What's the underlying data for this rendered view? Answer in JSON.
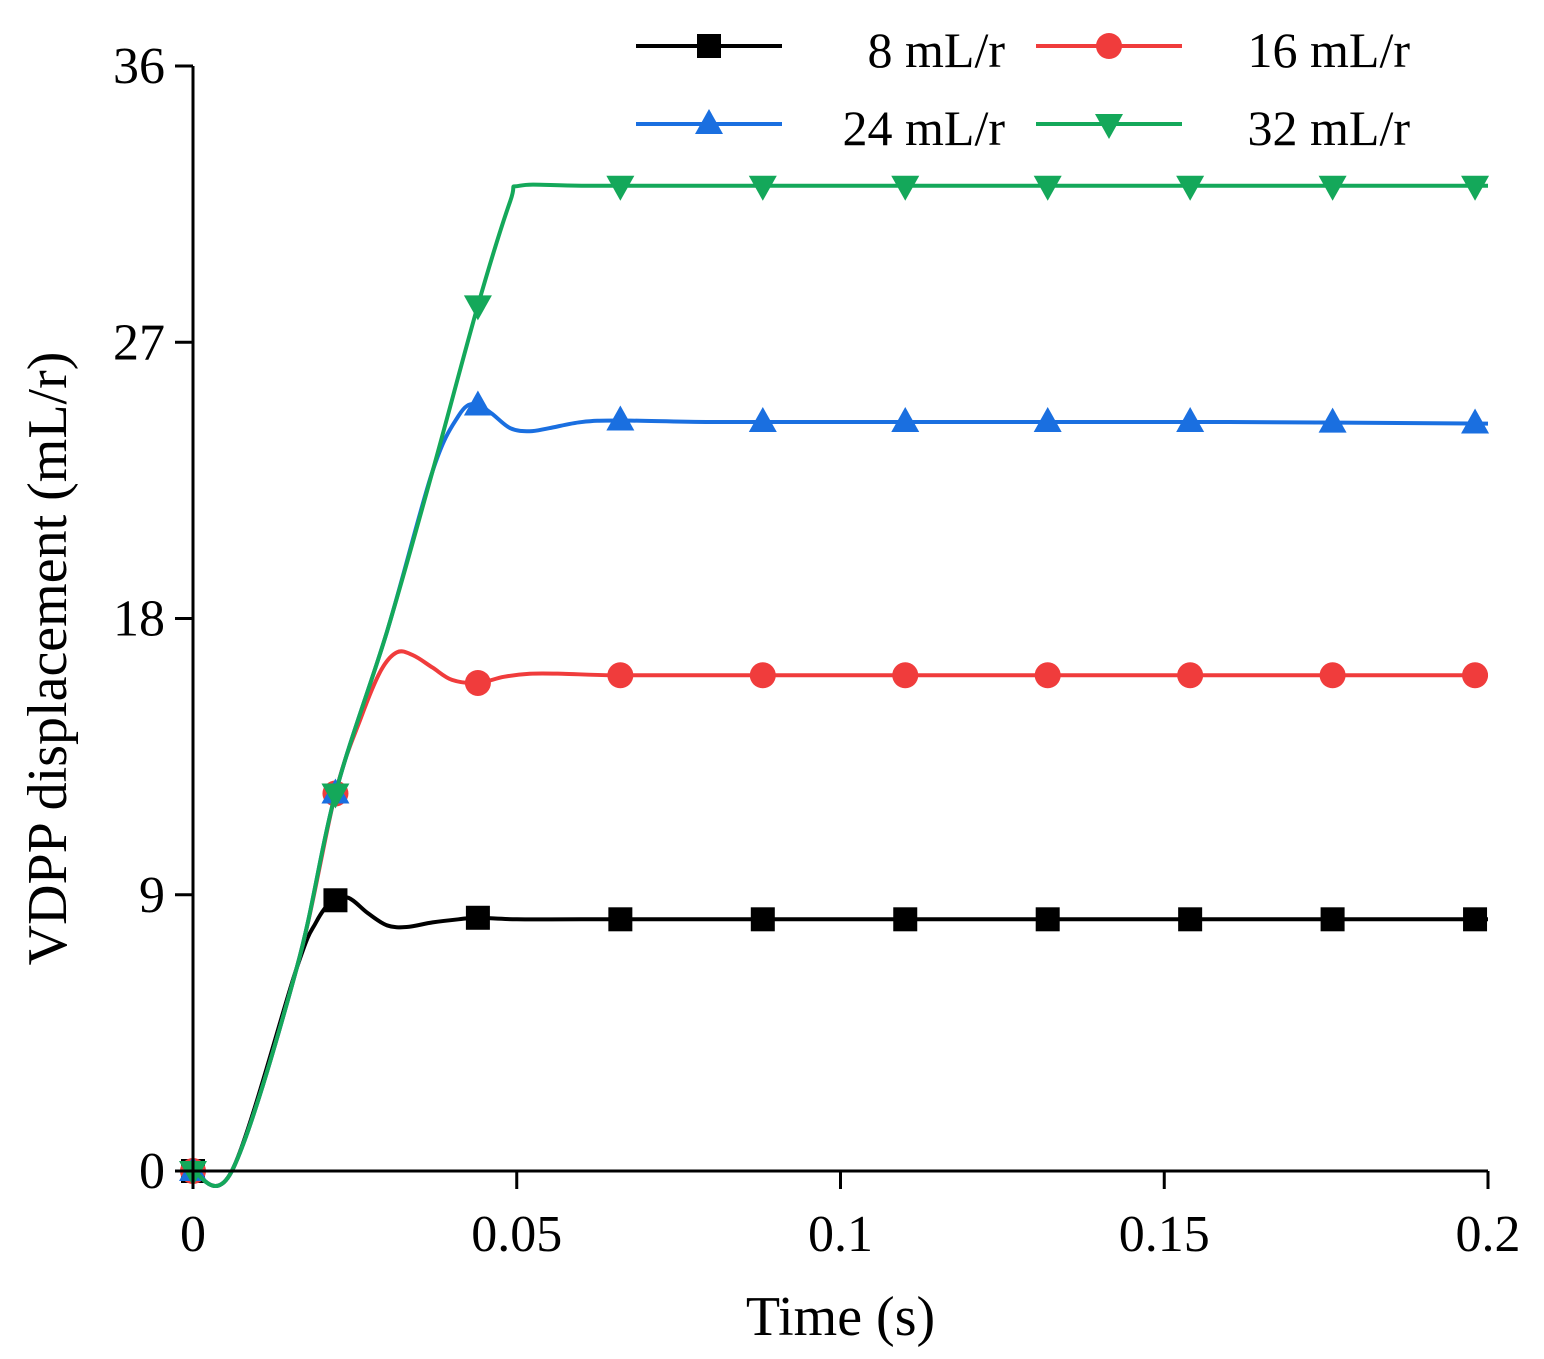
{
  "chart_data": {
    "type": "line",
    "title": "",
    "xlabel": "Time (s)",
    "ylabel": "VDPP displacement (mL/r)",
    "xlim": [
      0,
      0.2
    ],
    "ylim": [
      0,
      36
    ],
    "xticks": [
      0,
      0.05,
      0.1,
      0.15,
      0.2
    ],
    "xtick_labels": [
      "0",
      "0.05",
      "0.1",
      "0.15",
      "0.2"
    ],
    "yticks": [
      0,
      9,
      18,
      27,
      36
    ],
    "ytick_labels": [
      "0",
      "9",
      "18",
      "27",
      "36"
    ],
    "grid": false,
    "legend_position": "top-right",
    "marker_x": [
      0,
      0.022,
      0.044,
      0.066,
      0.088,
      0.11,
      0.132,
      0.154,
      0.176,
      0.198
    ],
    "series": [
      {
        "name": "8 mL/r",
        "label": "8 mL/r",
        "color": "#000000",
        "marker": "square",
        "x": [
          0,
          0.006,
          0.016,
          0.019,
          0.0215,
          0.024,
          0.027,
          0.03,
          0.033,
          0.037,
          0.041,
          0.044,
          0.05,
          0.06,
          0.08,
          0.1,
          0.12,
          0.15,
          0.18,
          0.2
        ],
        "values": [
          0,
          0,
          6.6,
          8.1,
          8.8,
          8.9,
          8.4,
          8.0,
          7.95,
          8.1,
          8.2,
          8.25,
          8.2,
          8.2,
          8.2,
          8.2,
          8.2,
          8.2,
          8.2,
          8.2
        ]
      },
      {
        "name": "16 mL/r",
        "label": "16 mL/r",
        "color": "#f03c3c",
        "marker": "circle",
        "x": [
          0,
          0.006,
          0.016,
          0.022,
          0.026,
          0.029,
          0.0315,
          0.034,
          0.037,
          0.04,
          0.044,
          0.048,
          0.052,
          0.057,
          0.065,
          0.08,
          0.1,
          0.13,
          0.16,
          0.2
        ],
        "values": [
          0,
          0,
          6.6,
          12.3,
          14.8,
          16.3,
          16.9,
          16.8,
          16.4,
          16.0,
          15.9,
          16.1,
          16.2,
          16.2,
          16.15,
          16.15,
          16.15,
          16.15,
          16.15,
          16.15
        ]
      },
      {
        "name": "24 mL/r",
        "label": "24 mL/r",
        "color": "#1a6fe0",
        "marker": "triangle-up",
        "x": [
          0,
          0.006,
          0.016,
          0.022,
          0.03,
          0.037,
          0.041,
          0.0435,
          0.046,
          0.049,
          0.052,
          0.055,
          0.06,
          0.066,
          0.08,
          0.1,
          0.13,
          0.16,
          0.2
        ],
        "values": [
          0,
          0,
          6.6,
          12.3,
          17.6,
          22.8,
          24.6,
          25.0,
          24.7,
          24.2,
          24.1,
          24.2,
          24.4,
          24.45,
          24.4,
          24.4,
          24.4,
          24.4,
          24.35
        ]
      },
      {
        "name": "32 mL/r",
        "label": "32 mL/r",
        "color": "#14a85a",
        "marker": "triangle-down",
        "x": [
          0,
          0.006,
          0.016,
          0.022,
          0.03,
          0.037,
          0.044,
          0.049,
          0.0505,
          0.06,
          0.08,
          0.1,
          0.13,
          0.16,
          0.2
        ],
        "values": [
          0,
          0,
          6.6,
          12.3,
          17.6,
          22.8,
          28.2,
          31.6,
          32.1,
          32.1,
          32.1,
          32.1,
          32.1,
          32.1,
          32.1
        ]
      }
    ]
  }
}
